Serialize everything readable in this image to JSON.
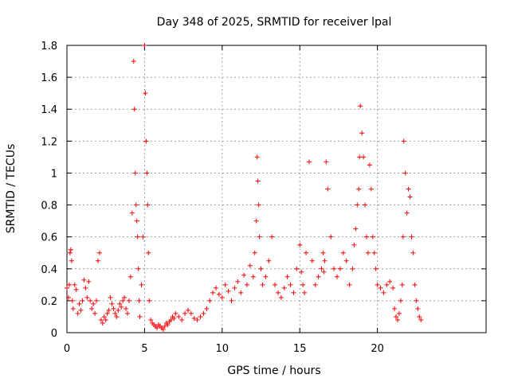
{
  "chart_data": {
    "type": "scatter",
    "title": "Day 348 of 2025, SRMTID for receiver lpal",
    "xlabel": "GPS time / hours",
    "ylabel": "SRMTID / TECUs",
    "xlim": [
      0,
      27
    ],
    "ylim": [
      0,
      1.8
    ],
    "xticks": [
      0,
      5,
      10,
      15,
      20
    ],
    "xtick_labels": [
      "0",
      "5",
      "10",
      "15",
      "20"
    ],
    "yticks": [
      0,
      0.2,
      0.4,
      0.6,
      0.8,
      1.0,
      1.2,
      1.4,
      1.6,
      1.8
    ],
    "ytick_labels": [
      "0",
      "0.2",
      "0.4",
      "0.6",
      "0.8",
      "1",
      "1.2",
      "1.4",
      "1.6",
      "1.8"
    ],
    "grid": true,
    "marker": "+",
    "marker_color": "#ff0000",
    "series": [
      {
        "name": "SRMTID",
        "x": [
          0.0,
          0.1,
          0.15,
          0.2,
          0.25,
          0.3,
          0.35,
          0.4,
          0.5,
          0.6,
          0.7,
          0.8,
          0.9,
          1.0,
          1.1,
          1.2,
          1.3,
          1.4,
          1.5,
          1.6,
          1.7,
          1.8,
          1.9,
          2.0,
          2.1,
          2.2,
          2.3,
          2.4,
          2.5,
          2.6,
          2.7,
          2.8,
          2.9,
          3.0,
          3.1,
          3.2,
          3.3,
          3.4,
          3.5,
          3.6,
          3.7,
          3.8,
          3.9,
          4.0,
          4.1,
          4.2,
          4.3,
          4.35,
          4.4,
          4.45,
          4.5,
          4.55,
          4.6,
          4.65,
          4.7,
          4.8,
          4.9,
          5.0,
          5.05,
          5.1,
          5.15,
          5.2,
          5.25,
          5.3,
          5.4,
          5.5,
          5.6,
          5.7,
          5.8,
          5.9,
          6.0,
          6.1,
          6.2,
          6.3,
          6.4,
          6.5,
          6.6,
          6.7,
          6.8,
          6.9,
          7.0,
          7.2,
          7.4,
          7.6,
          7.8,
          8.0,
          8.2,
          8.4,
          8.6,
          8.8,
          9.0,
          9.2,
          9.4,
          9.6,
          9.8,
          10.0,
          10.2,
          10.4,
          10.6,
          10.8,
          11.0,
          11.2,
          11.4,
          11.6,
          11.8,
          12.0,
          12.1,
          12.2,
          12.25,
          12.3,
          12.35,
          12.4,
          12.5,
          12.6,
          12.8,
          13.0,
          13.2,
          13.4,
          13.6,
          13.8,
          14.0,
          14.2,
          14.4,
          14.6,
          14.8,
          15.0,
          15.1,
          15.2,
          15.3,
          15.4,
          15.6,
          15.8,
          16.0,
          16.2,
          16.4,
          16.5,
          16.55,
          16.6,
          16.7,
          16.8,
          17.0,
          17.2,
          17.4,
          17.6,
          17.8,
          18.0,
          18.2,
          18.4,
          18.5,
          18.6,
          18.7,
          18.8,
          18.85,
          18.9,
          19.0,
          19.1,
          19.2,
          19.3,
          19.4,
          19.5,
          19.6,
          19.7,
          19.8,
          19.9,
          20.0,
          20.2,
          20.4,
          20.6,
          20.8,
          21.0,
          21.1,
          21.2,
          21.3,
          21.4,
          21.5,
          21.6,
          21.65,
          21.7,
          21.8,
          21.9,
          22.0,
          22.1,
          22.2,
          22.3,
          22.4,
          22.5,
          22.6,
          22.7,
          22.8
        ],
        "y": [
          0.28,
          0.22,
          0.3,
          0.5,
          0.52,
          0.45,
          0.2,
          0.15,
          0.3,
          0.27,
          0.12,
          0.18,
          0.14,
          0.2,
          0.33,
          0.28,
          0.22,
          0.32,
          0.2,
          0.15,
          0.18,
          0.12,
          0.2,
          0.45,
          0.5,
          0.08,
          0.06,
          0.1,
          0.08,
          0.12,
          0.14,
          0.22,
          0.18,
          0.15,
          0.12,
          0.1,
          0.14,
          0.18,
          0.16,
          0.2,
          0.22,
          0.15,
          0.12,
          0.2,
          0.35,
          0.75,
          1.7,
          1.4,
          1.0,
          0.8,
          0.7,
          0.6,
          0.4,
          0.2,
          0.1,
          0.3,
          0.6,
          1.8,
          1.5,
          1.2,
          1.0,
          0.8,
          0.5,
          0.2,
          0.08,
          0.06,
          0.05,
          0.04,
          0.03,
          0.05,
          0.04,
          0.03,
          0.02,
          0.04,
          0.06,
          0.05,
          0.07,
          0.08,
          0.1,
          0.09,
          0.12,
          0.1,
          0.08,
          0.12,
          0.14,
          0.12,
          0.09,
          0.08,
          0.1,
          0.12,
          0.15,
          0.2,
          0.25,
          0.28,
          0.24,
          0.22,
          0.3,
          0.26,
          0.2,
          0.28,
          0.32,
          0.25,
          0.36,
          0.3,
          0.42,
          0.35,
          0.5,
          0.7,
          1.1,
          0.95,
          0.8,
          0.6,
          0.4,
          0.3,
          0.35,
          0.45,
          0.6,
          0.3,
          0.25,
          0.22,
          0.28,
          0.35,
          0.3,
          0.25,
          0.4,
          0.55,
          0.38,
          0.3,
          0.25,
          0.5,
          1.07,
          0.45,
          0.3,
          0.35,
          0.4,
          0.5,
          0.38,
          0.45,
          1.07,
          0.9,
          0.6,
          0.4,
          0.35,
          0.4,
          0.5,
          0.45,
          0.3,
          0.4,
          0.55,
          0.65,
          0.8,
          0.9,
          1.1,
          1.42,
          1.25,
          1.1,
          0.8,
          0.6,
          0.5,
          1.05,
          0.9,
          0.6,
          0.5,
          0.4,
          0.3,
          0.28,
          0.25,
          0.3,
          0.32,
          0.28,
          0.15,
          0.1,
          0.08,
          0.12,
          0.2,
          0.3,
          0.6,
          1.2,
          1.0,
          0.75,
          0.9,
          0.85,
          0.6,
          0.5,
          0.3,
          0.2,
          0.15,
          0.1,
          0.08
        ]
      }
    ]
  }
}
